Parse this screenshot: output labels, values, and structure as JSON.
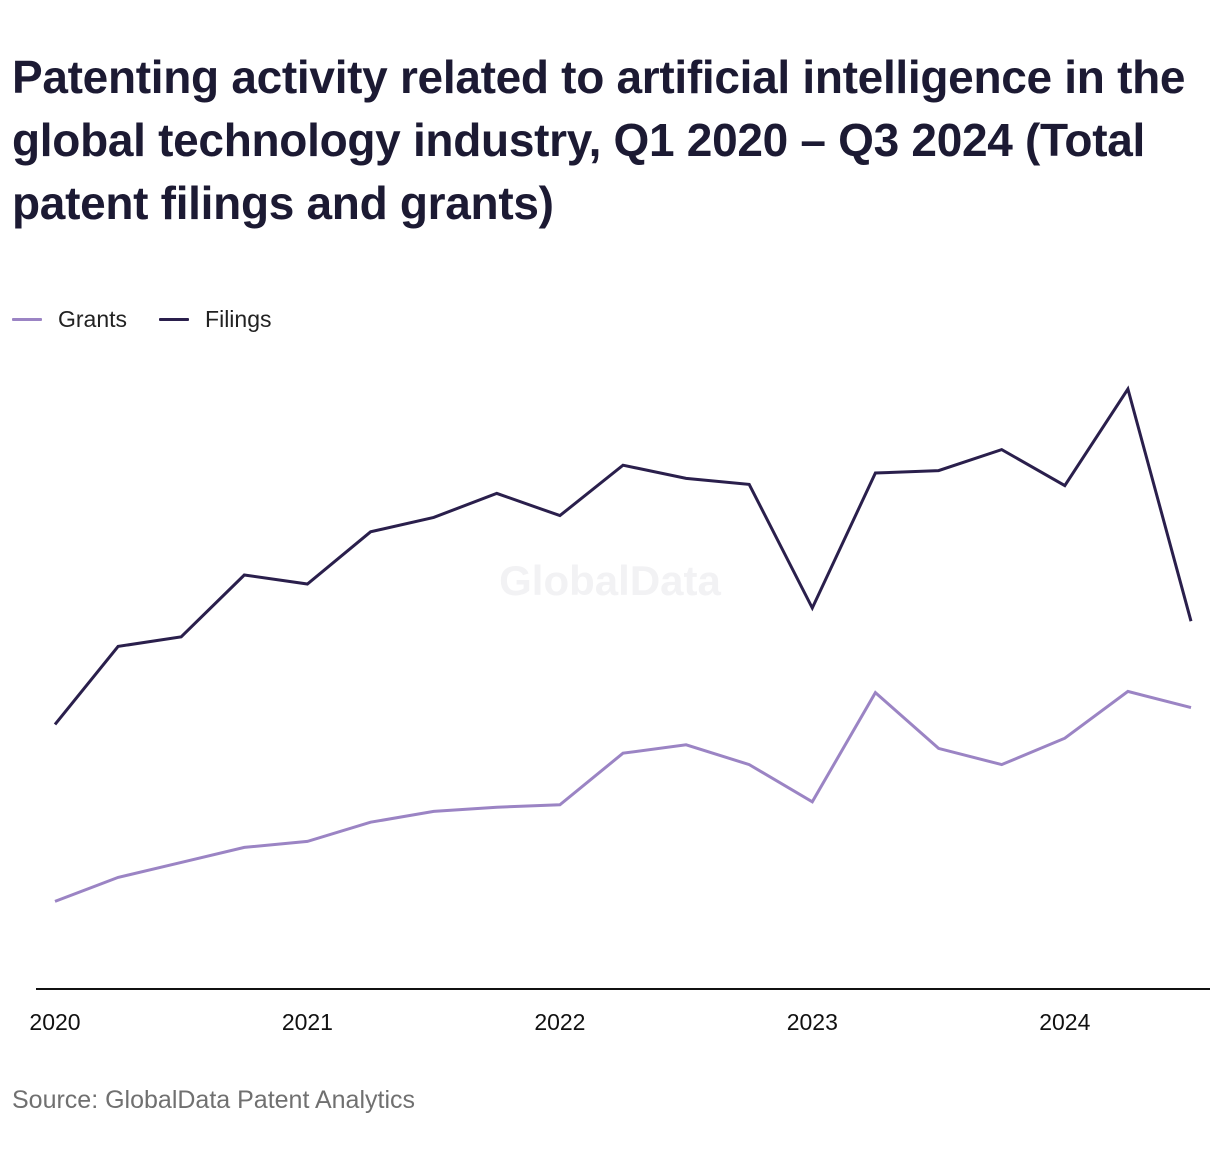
{
  "title": "Patenting activity related to artificial intelligence in the global technology industry, Q1 2020 – Q3 2024 (Total patent filings and grants)",
  "watermark": "GlobalData",
  "source": "Source: GlobalData Patent Analytics",
  "colors": {
    "grants": "#9b84c4",
    "filings": "#2a1f4c",
    "axis": "#111111"
  },
  "legend": [
    {
      "key": "grants",
      "label": "Grants"
    },
    {
      "key": "filings",
      "label": "Filings"
    }
  ],
  "chart_data": {
    "type": "line",
    "title": "Patenting activity related to artificial intelligence in the global technology industry, Q1 2020 – Q3 2024 (Total patent filings and grants)",
    "xlabel": "",
    "ylabel": "",
    "x": [
      "Q1 2020",
      "Q2 2020",
      "Q3 2020",
      "Q4 2020",
      "Q1 2021",
      "Q2 2021",
      "Q3 2021",
      "Q4 2021",
      "Q1 2022",
      "Q2 2022",
      "Q3 2022",
      "Q4 2022",
      "Q1 2023",
      "Q2 2023",
      "Q3 2023",
      "Q4 2023",
      "Q1 2024",
      "Q2 2024",
      "Q3 2024"
    ],
    "x_tick_labels": [
      "2020",
      "2021",
      "2022",
      "2023",
      "2024"
    ],
    "x_tick_indices": [
      0,
      4,
      8,
      12,
      16
    ],
    "ylim": [
      0,
      1000
    ],
    "grid": false,
    "legend_position": "top-left",
    "series": [
      {
        "name": "Grants",
        "values": [
          146,
          186,
          211,
          236,
          246,
          278,
          296,
          303,
          307,
          393,
          407,
          374,
          312,
          494,
          401,
          374,
          418,
          496,
          469
        ]
      },
      {
        "name": "Filings",
        "values": [
          441,
          571,
          587,
          690,
          675,
          762,
          786,
          826,
          789,
          873,
          851,
          841,
          635,
          860,
          864,
          899,
          839,
          1000,
          613
        ]
      }
    ]
  }
}
